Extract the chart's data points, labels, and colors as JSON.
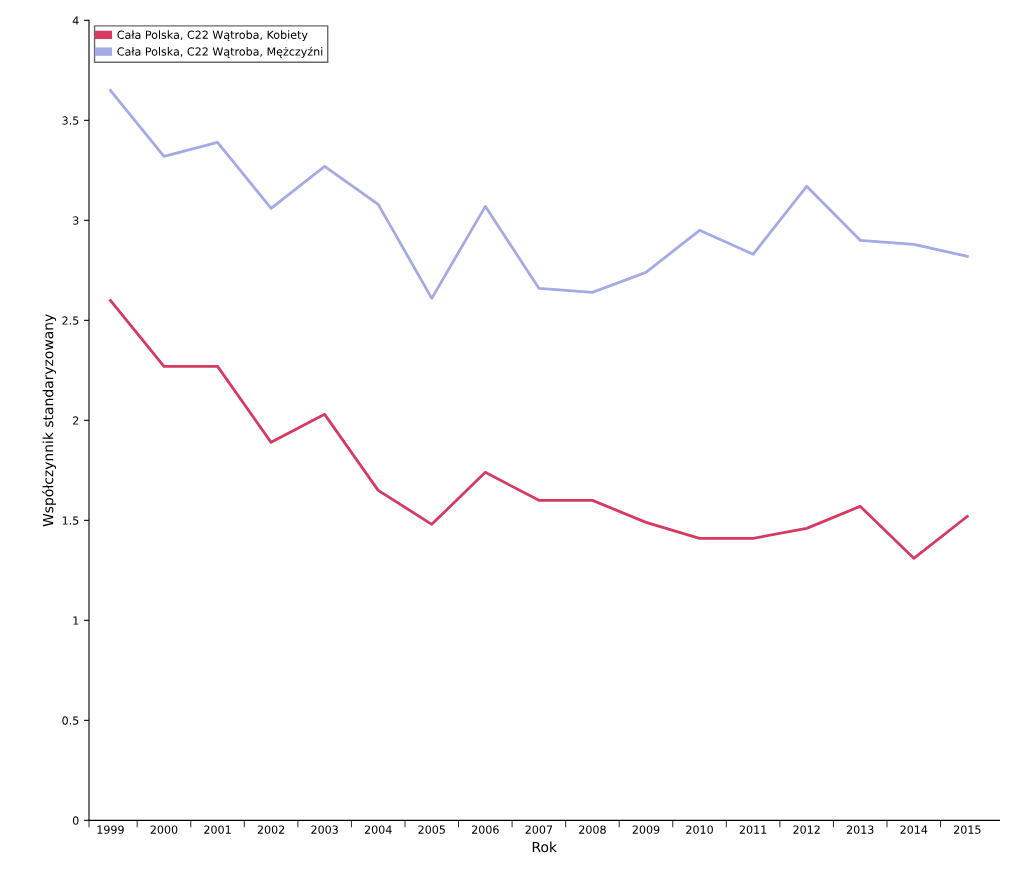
{
  "chart_data": {
    "type": "line",
    "xlabel": "Rok",
    "ylabel": "Współczynnik standaryzowany",
    "categories": [
      "1999",
      "2000",
      "2001",
      "2002",
      "2003",
      "2004",
      "2005",
      "2006",
      "2007",
      "2008",
      "2009",
      "2010",
      "2011",
      "2012",
      "2013",
      "2014",
      "2015"
    ],
    "series": [
      {
        "name": "Cała Polska, C22 Wątroba, Kobiety",
        "color": "#d63a62",
        "values": [
          2.6,
          2.27,
          2.27,
          1.89,
          2.03,
          1.65,
          1.48,
          1.74,
          1.6,
          1.6,
          1.49,
          1.41,
          1.41,
          1.46,
          1.57,
          1.31,
          1.52
        ]
      },
      {
        "name": "Cała Polska, C22 Wątroba, Mężczyźni",
        "color": "#a3aae6",
        "values": [
          3.65,
          3.32,
          3.39,
          3.06,
          3.27,
          3.08,
          2.61,
          3.07,
          2.66,
          2.64,
          2.74,
          2.95,
          2.83,
          3.17,
          2.9,
          2.88,
          2.82
        ]
      }
    ],
    "ylim": [
      0,
      4
    ],
    "yticks": [
      0,
      0.5,
      1,
      1.5,
      2,
      2.5,
      3,
      3.5,
      4
    ],
    "grid": false,
    "legend": "top left",
    "marker": "none",
    "line_style": "solid"
  }
}
